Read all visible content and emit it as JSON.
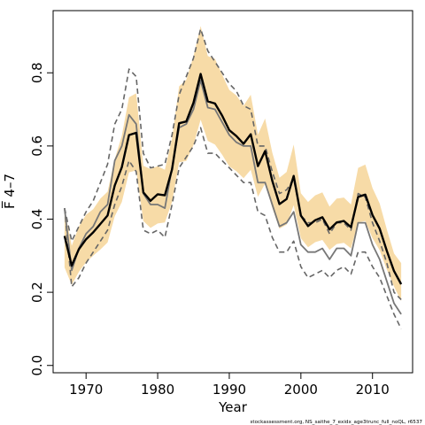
{
  "footer": "stockassessment.org, NS_saithe_7_exidx_age3trunc_full_noQL, r6537",
  "chart_data": {
    "type": "line",
    "xlabel": "Year",
    "ylabel": "F̅ 4–7",
    "xlim": [
      1965.4,
      2015.6
    ],
    "ylim": [
      -0.02,
      0.97
    ],
    "x_ticks": [
      1970,
      1980,
      1990,
      2000,
      2010
    ],
    "y_ticks": [
      "0.0",
      "0.2",
      "0.4",
      "0.6",
      "0.8"
    ],
    "grid": false,
    "legend": "none",
    "colors": {
      "band": "#f7dba7",
      "estimate": "#000000",
      "reference": "#777777",
      "dashed": "#666666"
    },
    "x": [
      1967,
      1968,
      1969,
      1970,
      1971,
      1972,
      1973,
      1974,
      1975,
      1976,
      1977,
      1978,
      1979,
      1980,
      1981,
      1982,
      1983,
      1984,
      1985,
      1986,
      1987,
      1988,
      1989,
      1990,
      1991,
      1992,
      1993,
      1994,
      1995,
      1996,
      1997,
      1998,
      1999,
      2000,
      2001,
      2002,
      2003,
      2004,
      2005,
      2006,
      2007,
      2008,
      2009,
      2010,
      2011,
      2012,
      2013,
      2014
    ],
    "series": [
      {
        "role": "estimate",
        "values": [
          0.354,
          0.273,
          0.318,
          0.345,
          0.364,
          0.387,
          0.41,
          0.492,
          0.542,
          0.63,
          0.636,
          0.473,
          0.45,
          0.468,
          0.465,
          0.536,
          0.662,
          0.667,
          0.718,
          0.797,
          0.722,
          0.716,
          0.683,
          0.643,
          0.627,
          0.606,
          0.632,
          0.545,
          0.586,
          0.505,
          0.441,
          0.455,
          0.518,
          0.41,
          0.381,
          0.397,
          0.405,
          0.372,
          0.391,
          0.395,
          0.378,
          0.461,
          0.467,
          0.411,
          0.374,
          0.313,
          0.258,
          0.222
        ]
      },
      {
        "role": "band_upper",
        "values": [
          0.425,
          0.327,
          0.38,
          0.412,
          0.427,
          0.456,
          0.475,
          0.564,
          0.628,
          0.733,
          0.744,
          0.546,
          0.537,
          0.545,
          0.535,
          0.62,
          0.763,
          0.781,
          0.845,
          0.928,
          0.846,
          0.838,
          0.795,
          0.753,
          0.738,
          0.71,
          0.74,
          0.631,
          0.675,
          0.582,
          0.513,
          0.529,
          0.604,
          0.471,
          0.447,
          0.465,
          0.473,
          0.434,
          0.456,
          0.459,
          0.44,
          0.54,
          0.549,
          0.485,
          0.443,
          0.372,
          0.306,
          0.28
        ]
      },
      {
        "role": "band_lower",
        "values": [
          0.268,
          0.22,
          0.256,
          0.282,
          0.3,
          0.317,
          0.336,
          0.408,
          0.447,
          0.528,
          0.533,
          0.395,
          0.376,
          0.388,
          0.391,
          0.447,
          0.555,
          0.559,
          0.602,
          0.672,
          0.614,
          0.604,
          0.576,
          0.544,
          0.531,
          0.512,
          0.535,
          0.461,
          0.497,
          0.431,
          0.374,
          0.385,
          0.438,
          0.348,
          0.323,
          0.337,
          0.343,
          0.316,
          0.332,
          0.335,
          0.32,
          0.391,
          0.395,
          0.348,
          0.315,
          0.262,
          0.216,
          0.176
        ]
      },
      {
        "role": "reference",
        "values": [
          0.43,
          0.26,
          0.32,
          0.36,
          0.38,
          0.42,
          0.44,
          0.56,
          0.6,
          0.685,
          0.66,
          0.47,
          0.44,
          0.44,
          0.43,
          0.54,
          0.65,
          0.66,
          0.7,
          0.78,
          0.705,
          0.7,
          0.665,
          0.63,
          0.61,
          0.6,
          0.6,
          0.5,
          0.5,
          0.44,
          0.38,
          0.39,
          0.42,
          0.33,
          0.31,
          0.31,
          0.32,
          0.29,
          0.32,
          0.32,
          0.3,
          0.39,
          0.39,
          0.33,
          0.29,
          0.23,
          0.17,
          0.14
        ]
      },
      {
        "role": "dashed_upper",
        "values": [
          0.43,
          0.34,
          0.38,
          0.42,
          0.45,
          0.5,
          0.55,
          0.66,
          0.7,
          0.81,
          0.79,
          0.58,
          0.54,
          0.545,
          0.55,
          0.63,
          0.74,
          0.79,
          0.84,
          0.92,
          0.86,
          0.83,
          0.8,
          0.77,
          0.75,
          0.71,
          0.7,
          0.6,
          0.6,
          0.53,
          0.47,
          0.48,
          0.51,
          0.41,
          0.39,
          0.39,
          0.4,
          0.36,
          0.39,
          0.39,
          0.37,
          0.47,
          0.46,
          0.39,
          0.34,
          0.28,
          0.2,
          0.18
        ]
      },
      {
        "role": "dashed_lower",
        "values": [
          0.43,
          0.215,
          0.24,
          0.28,
          0.31,
          0.34,
          0.37,
          0.44,
          0.49,
          0.56,
          0.53,
          0.37,
          0.36,
          0.37,
          0.35,
          0.44,
          0.54,
          0.57,
          0.6,
          0.65,
          0.58,
          0.58,
          0.56,
          0.54,
          0.52,
          0.5,
          0.5,
          0.42,
          0.41,
          0.35,
          0.31,
          0.31,
          0.34,
          0.27,
          0.24,
          0.25,
          0.26,
          0.24,
          0.26,
          0.27,
          0.25,
          0.31,
          0.31,
          0.27,
          0.24,
          0.19,
          0.14,
          0.1
        ]
      }
    ]
  }
}
